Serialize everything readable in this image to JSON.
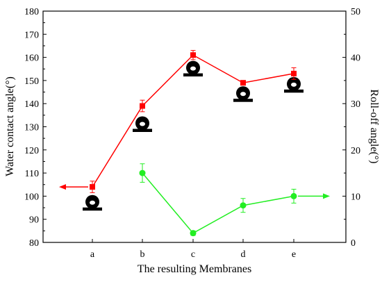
{
  "chart_data": {
    "type": "line",
    "xlabel": "The resulting Membranes",
    "ylabel_left": "Water contact angle(°)",
    "ylabel_right": "Roll-off angle(°)",
    "categories": [
      "a",
      "b",
      "c",
      "d",
      "e"
    ],
    "ylim_left": [
      80,
      180
    ],
    "ylim_right": [
      0,
      50
    ],
    "yticks_left": [
      80,
      90,
      100,
      110,
      120,
      130,
      140,
      150,
      160,
      170,
      180
    ],
    "yticks_right": [
      0,
      10,
      20,
      30,
      40,
      50
    ],
    "grid": false,
    "series": [
      {
        "axis": "left",
        "color": "#ff0000",
        "marker": "square",
        "arrow": "left",
        "x": [
          "a",
          "b",
          "c",
          "d",
          "e"
        ],
        "values": [
          104,
          139,
          161,
          149,
          153
        ],
        "error": [
          2.5,
          2.5,
          2.0,
          1.0,
          2.5
        ]
      },
      {
        "axis": "right",
        "color": "#22ee22",
        "marker": "circle",
        "arrow": "right",
        "x": [
          "b",
          "c",
          "d",
          "e"
        ],
        "values": [
          15,
          2,
          8,
          10
        ],
        "error": [
          2.0,
          0.5,
          1.5,
          1.5
        ]
      }
    ],
    "droplets": [
      {
        "category": "a",
        "contact_angle": 96
      },
      {
        "category": "b",
        "contact_angle": 130
      },
      {
        "category": "c",
        "contact_angle": 154
      },
      {
        "category": "d",
        "contact_angle": 143
      },
      {
        "category": "e",
        "contact_angle": 147
      }
    ]
  }
}
